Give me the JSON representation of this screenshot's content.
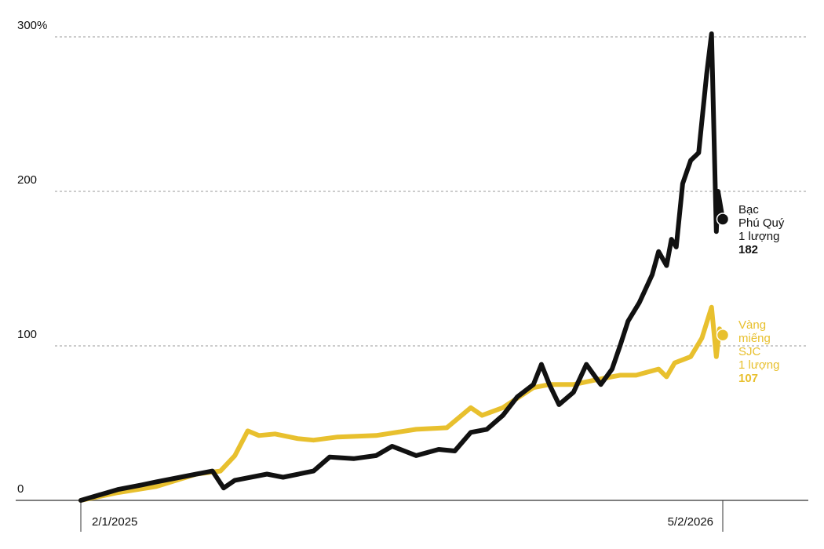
{
  "chart_data": {
    "type": "line",
    "title": "",
    "xlabel": "",
    "ylabel": "",
    "ylim": [
      0,
      300
    ],
    "xlim_days": [
      0,
      400
    ],
    "y_ticks": [
      {
        "value": 0,
        "label": "0"
      },
      {
        "value": 100,
        "label": "100"
      },
      {
        "value": 200,
        "label": "200"
      },
      {
        "value": 300,
        "label": "300%"
      }
    ],
    "x_ticks": [
      {
        "day": 0,
        "label": "2/1/2025"
      },
      {
        "day": 400,
        "label": "5/2/2026"
      }
    ],
    "grid": true,
    "series": [
      {
        "name": "Bạc Phú Quý 1 lượng",
        "label_lines": [
          "Bạc",
          "Phú Quý",
          "1 lượng"
        ],
        "end_value_label": "182",
        "end_value": 182,
        "color": "#111111",
        "points": [
          [
            0,
            0
          ],
          [
            23,
            7
          ],
          [
            38,
            10
          ],
          [
            47,
            12
          ],
          [
            67,
            16
          ],
          [
            82,
            19
          ],
          [
            89,
            8
          ],
          [
            96,
            13
          ],
          [
            116,
            17
          ],
          [
            126,
            15
          ],
          [
            145,
            19
          ],
          [
            155,
            28
          ],
          [
            170,
            27
          ],
          [
            184,
            29
          ],
          [
            194,
            35
          ],
          [
            209,
            29
          ],
          [
            223,
            33
          ],
          [
            233,
            32
          ],
          [
            243,
            44
          ],
          [
            253,
            46
          ],
          [
            263,
            55
          ],
          [
            272,
            67
          ],
          [
            282,
            75
          ],
          [
            287,
            88
          ],
          [
            292,
            75
          ],
          [
            298,
            62
          ],
          [
            307,
            70
          ],
          [
            315,
            88
          ],
          [
            324,
            75
          ],
          [
            331,
            85
          ],
          [
            336,
            100
          ],
          [
            341,
            116
          ],
          [
            348,
            128
          ],
          [
            356,
            146
          ],
          [
            360,
            161
          ],
          [
            365,
            152
          ],
          [
            368,
            169
          ],
          [
            371,
            164
          ],
          [
            375,
            205
          ],
          [
            380,
            220
          ],
          [
            385,
            225
          ],
          [
            390,
            276
          ],
          [
            393,
            302
          ],
          [
            396,
            174
          ],
          [
            397,
            200
          ],
          [
            400,
            182
          ]
        ]
      },
      {
        "name": "Vàng miếng SJC 1 lượng",
        "label_lines": [
          "Vàng",
          "miếng",
          "SJC",
          "1 lượng"
        ],
        "end_value_label": "107",
        "end_value": 107,
        "color": "#E8C02E",
        "points": [
          [
            0,
            0
          ],
          [
            23,
            5
          ],
          [
            47,
            9
          ],
          [
            72,
            17
          ],
          [
            87,
            19
          ],
          [
            96,
            29
          ],
          [
            104,
            45
          ],
          [
            111,
            42
          ],
          [
            121,
            43
          ],
          [
            135,
            40
          ],
          [
            145,
            39
          ],
          [
            160,
            41
          ],
          [
            184,
            42
          ],
          [
            209,
            46
          ],
          [
            228,
            47
          ],
          [
            243,
            60
          ],
          [
            250,
            55
          ],
          [
            263,
            60
          ],
          [
            282,
            73
          ],
          [
            292,
            75
          ],
          [
            307,
            75
          ],
          [
            321,
            78
          ],
          [
            336,
            81
          ],
          [
            346,
            81
          ],
          [
            360,
            85
          ],
          [
            365,
            80
          ],
          [
            370,
            89
          ],
          [
            380,
            93
          ],
          [
            387,
            105
          ],
          [
            393,
            125
          ],
          [
            396,
            93
          ],
          [
            398,
            111
          ],
          [
            400,
            107
          ]
        ]
      }
    ]
  }
}
